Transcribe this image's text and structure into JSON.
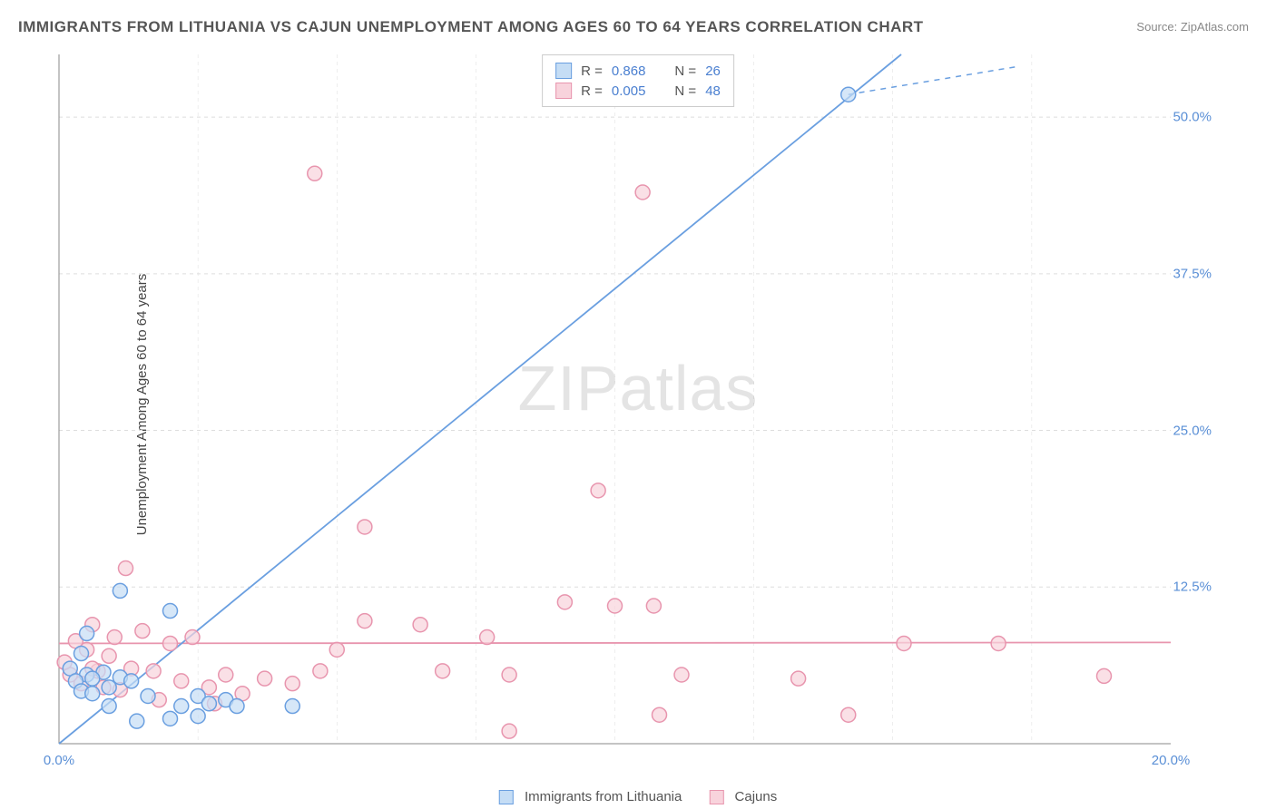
{
  "title": "IMMIGRANTS FROM LITHUANIA VS CAJUN UNEMPLOYMENT AMONG AGES 60 TO 64 YEARS CORRELATION CHART",
  "source_label": "Source:",
  "source_link": "ZipAtlas.com",
  "ylabel": "Unemployment Among Ages 60 to 64 years",
  "watermark_prefix": "ZIP",
  "watermark_suffix": "atlas",
  "chart": {
    "type": "scatter",
    "xlim": [
      0,
      20
    ],
    "ylim": [
      0,
      55
    ],
    "xtick_labels": [
      "0.0%",
      "20.0%"
    ],
    "xtick_pos": [
      0,
      20
    ],
    "ytick_labels": [
      "12.5%",
      "25.0%",
      "37.5%",
      "50.0%"
    ],
    "ytick_pos": [
      12.5,
      25,
      37.5,
      50
    ],
    "grid_color": "#dddddd",
    "axis_color": "#888888",
    "background_color": "#ffffff",
    "marker_size": 8,
    "marker_stroke_width": 1.5,
    "line_width": 1.8,
    "dash_line_width": 1.5,
    "series": {
      "lithuania": {
        "label": "Immigrants from Lithuania",
        "fill_color": "#c5ddf5",
        "stroke_color": "#6a9fe0",
        "r_label": "R =",
        "r_value": "0.868",
        "n_label": "N =",
        "n_value": "26",
        "points": [
          [
            14.2,
            51.8
          ],
          [
            1.1,
            12.2
          ],
          [
            2.0,
            10.6
          ],
          [
            0.5,
            8.8
          ],
          [
            0.4,
            7.2
          ],
          [
            0.2,
            6.0
          ],
          [
            0.5,
            5.5
          ],
          [
            0.8,
            5.7
          ],
          [
            0.3,
            5.0
          ],
          [
            0.6,
            5.2
          ],
          [
            1.1,
            5.3
          ],
          [
            1.3,
            5.0
          ],
          [
            0.4,
            4.2
          ],
          [
            0.6,
            4.0
          ],
          [
            0.9,
            4.5
          ],
          [
            1.6,
            3.8
          ],
          [
            2.2,
            3.0
          ],
          [
            2.5,
            3.8
          ],
          [
            2.7,
            3.2
          ],
          [
            3.0,
            3.5
          ],
          [
            3.2,
            3.0
          ],
          [
            4.2,
            3.0
          ],
          [
            1.4,
            1.8
          ],
          [
            2.0,
            2.0
          ],
          [
            2.5,
            2.2
          ],
          [
            0.9,
            3.0
          ]
        ],
        "line": {
          "slope": 3.63,
          "intercept": 0
        },
        "dash": {
          "x1": 14.2,
          "y1": 51.8,
          "x2": 17.2,
          "y2": 54.0
        }
      },
      "cajuns": {
        "label": "Cajuns",
        "fill_color": "#f8d3dc",
        "stroke_color": "#e895ae",
        "r_label": "R =",
        "r_value": "0.005",
        "n_label": "N =",
        "n_value": "48",
        "points": [
          [
            4.6,
            45.5
          ],
          [
            10.5,
            44.0
          ],
          [
            9.7,
            20.2
          ],
          [
            5.5,
            17.3
          ],
          [
            1.2,
            14.0
          ],
          [
            9.1,
            11.3
          ],
          [
            10.0,
            11.0
          ],
          [
            10.7,
            11.0
          ],
          [
            15.2,
            8.0
          ],
          [
            16.9,
            8.0
          ],
          [
            18.8,
            5.4
          ],
          [
            13.3,
            5.2
          ],
          [
            14.2,
            2.3
          ],
          [
            10.8,
            2.3
          ],
          [
            11.2,
            5.5
          ],
          [
            7.7,
            8.5
          ],
          [
            8.1,
            5.5
          ],
          [
            8.1,
            1.0
          ],
          [
            6.9,
            5.8
          ],
          [
            6.5,
            9.5
          ],
          [
            5.0,
            7.5
          ],
          [
            4.7,
            5.8
          ],
          [
            4.2,
            4.8
          ],
          [
            3.7,
            5.2
          ],
          [
            3.3,
            4.0
          ],
          [
            3.0,
            5.5
          ],
          [
            2.7,
            4.5
          ],
          [
            2.4,
            8.5
          ],
          [
            2.2,
            5.0
          ],
          [
            2.0,
            8.0
          ],
          [
            1.7,
            5.8
          ],
          [
            1.5,
            9.0
          ],
          [
            1.3,
            6.0
          ],
          [
            1.1,
            4.3
          ],
          [
            1.0,
            8.5
          ],
          [
            0.9,
            7.0
          ],
          [
            0.8,
            4.5
          ],
          [
            0.7,
            5.8
          ],
          [
            0.6,
            6.0
          ],
          [
            0.5,
            7.5
          ],
          [
            0.4,
            4.8
          ],
          [
            0.3,
            8.2
          ],
          [
            0.2,
            5.5
          ],
          [
            0.1,
            6.5
          ],
          [
            0.6,
            9.5
          ],
          [
            5.5,
            9.8
          ],
          [
            2.8,
            3.2
          ],
          [
            1.8,
            3.5
          ]
        ],
        "line": {
          "slope": 0.004,
          "intercept": 8.0
        }
      }
    }
  }
}
